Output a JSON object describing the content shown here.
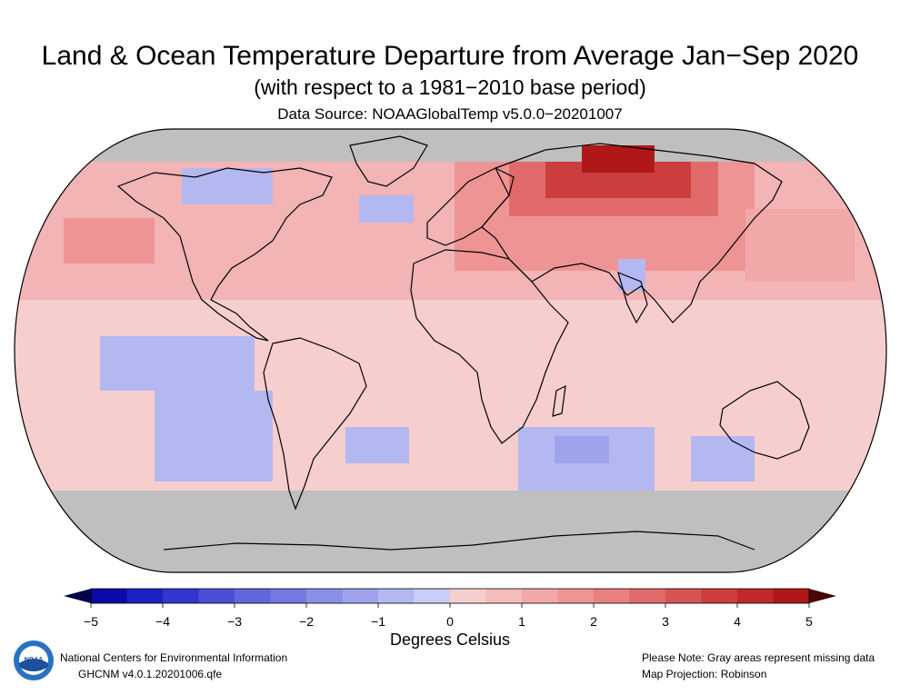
{
  "header": {
    "title": "Land & Ocean Temperature Departure from Average Jan−Sep 2020",
    "subtitle": "(with respect to a 1981−2010 base period)",
    "source": "Data Source: NOAAGlobalTemp v5.0.0−20201007"
  },
  "colorbar": {
    "title": "Degrees Celsius",
    "ticks": [
      "−5",
      "−4",
      "−3",
      "−2",
      "−1",
      "0",
      "1",
      "2",
      "3",
      "4",
      "5"
    ],
    "tick_values": [
      -5,
      -4,
      -3,
      -2,
      -1,
      0,
      1,
      2,
      3,
      4,
      5
    ],
    "colors_negative": [
      "#0a0aa8",
      "#1e22c2",
      "#3236cf",
      "#4a4fd6",
      "#6166dc",
      "#7479df",
      "#8a8fe6",
      "#9ea3ec",
      "#b4b8f1",
      "#cacdf6"
    ],
    "colors_positive": [
      "#f7cece",
      "#f5bcbc",
      "#f2a8a8",
      "#ee9494",
      "#e88080",
      "#e06a6a",
      "#d65454",
      "#cc3e3e",
      "#c02a2a",
      "#b01818"
    ],
    "below_color": "#05054a",
    "above_color": "#4a0505"
  },
  "map": {
    "missing_color": "#bfbfbf",
    "projection": "Robinson"
  },
  "footer": {
    "org": "National Centers for Environmental Information",
    "dataset": "GHCNM v4.0.1.20201006.qfe",
    "note": "Please Note: Gray areas represent missing data",
    "projection_note": "Map Projection: Robinson",
    "logo_text": "NOAA"
  }
}
